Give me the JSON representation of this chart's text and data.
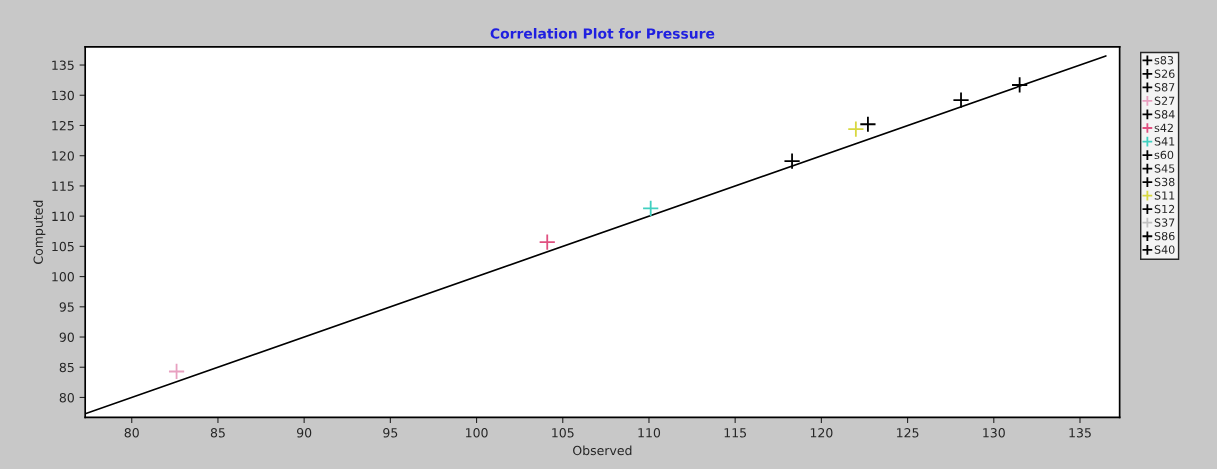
{
  "chart_data": {
    "type": "scatter",
    "title": "Correlation Plot for Pressure",
    "xlabel": "Observed",
    "ylabel": "Computed",
    "xlim": [
      77.3,
      137.3
    ],
    "ylim": [
      76.7,
      138
    ],
    "xticks": [
      80,
      85,
      90,
      95,
      100,
      105,
      110,
      115,
      120,
      125,
      130,
      135
    ],
    "yticks": [
      80,
      85,
      90,
      95,
      100,
      105,
      110,
      115,
      120,
      125,
      130,
      135
    ],
    "marker": "cross",
    "grid": false,
    "legend": "right",
    "series": [
      {
        "name": "s83",
        "color": "#000000",
        "x": [
          131.5
        ],
        "values": [
          131.7
        ]
      },
      {
        "name": "S26",
        "color": "#000000",
        "x": [
          128.1
        ],
        "values": [
          129.2
        ]
      },
      {
        "name": "S87",
        "color": "#000000",
        "x": [
          122.7
        ],
        "values": [
          125.2
        ]
      },
      {
        "name": "S27",
        "color": "#e8a0c0",
        "x": [
          82.6
        ],
        "values": [
          84.3
        ]
      },
      {
        "name": "S84",
        "color": "#000000",
        "x": [
          118.3
        ],
        "values": [
          119.1
        ]
      },
      {
        "name": "s42",
        "color": "#e05080",
        "x": [
          104.1
        ],
        "values": [
          105.7
        ]
      },
      {
        "name": "S41",
        "color": "#40d0c0",
        "x": [
          110.1
        ],
        "values": [
          111.3
        ]
      },
      {
        "name": "s60",
        "color": "#000000",
        "x": [
          null
        ],
        "values": [
          null
        ]
      },
      {
        "name": "S45",
        "color": "#000000",
        "x": [
          null
        ],
        "values": [
          null
        ]
      },
      {
        "name": "S38",
        "color": "#000000",
        "x": [
          null
        ],
        "values": [
          null
        ]
      },
      {
        "name": "S11",
        "color": "#d8d840",
        "x": [
          122.0
        ],
        "values": [
          124.4
        ]
      },
      {
        "name": "S12",
        "color": "#000000",
        "x": [
          null
        ],
        "values": [
          null
        ]
      },
      {
        "name": "S37",
        "color": "#c0c0c0",
        "x": [
          null
        ],
        "values": [
          null
        ]
      },
      {
        "name": "S86",
        "color": "#000000",
        "x": [
          null
        ],
        "values": [
          null
        ]
      },
      {
        "name": "S40",
        "color": "#000000",
        "x": [
          null
        ],
        "values": [
          null
        ]
      },
      {
        "type": "line",
        "color": "#000000",
        "x": [
          77.3,
          136.5
        ],
        "values": [
          77.3,
          136.5
        ],
        "marker": "none"
      }
    ]
  }
}
